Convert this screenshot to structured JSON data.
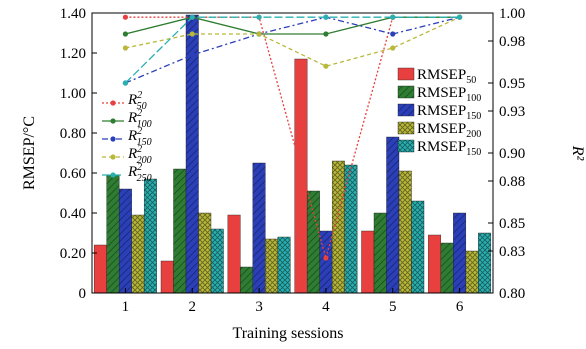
{
  "chart_data": {
    "type": "bar",
    "x_label": "Training sessions",
    "y_label": "RMSEP/°C",
    "y2_label": "R²",
    "categories": [
      "1",
      "2",
      "3",
      "4",
      "5",
      "6"
    ],
    "ylim": [
      0,
      1.4
    ],
    "y_ticks": [
      "0",
      "0.20",
      "0.40",
      "0.60",
      "0.80",
      "1.00",
      "1.20",
      "1.40"
    ],
    "y2lim": [
      0.8,
      1.0
    ],
    "y2_ticks": [
      "0.80",
      "0.83",
      "0.85",
      "0.88",
      "0.90",
      "0.93",
      "0.95",
      "0.98",
      "1.00"
    ],
    "bar_series": [
      {
        "base": "RMSEP",
        "sub": "50",
        "color": "#e8403f",
        "hatch": "none",
        "values": [
          0.24,
          0.16,
          0.39,
          1.17,
          0.31,
          0.29
        ]
      },
      {
        "base": "RMSEP",
        "sub": "100",
        "color": "#2e7d32",
        "hatch": "diagonal",
        "values": [
          0.59,
          0.62,
          0.13,
          0.51,
          0.4,
          0.25
        ]
      },
      {
        "base": "RMSEP",
        "sub": "150",
        "color": "#2b3fb8",
        "hatch": "diagonal",
        "values": [
          0.52,
          1.39,
          0.65,
          0.31,
          0.78,
          0.4
        ]
      },
      {
        "base": "RMSEP",
        "sub": "200",
        "color": "#b8b83a",
        "hatch": "cross",
        "values": [
          0.39,
          0.4,
          0.27,
          0.66,
          0.61,
          0.21
        ]
      },
      {
        "base": "RMSEP",
        "sub": "150",
        "color": "#2ab0b0",
        "hatch": "cross",
        "values": [
          0.57,
          0.32,
          0.28,
          0.64,
          0.46,
          0.3
        ]
      }
    ],
    "line_series": [
      {
        "base": "R",
        "sup": "2",
        "sub": "50",
        "color": "#e8403f",
        "dash": "2,2",
        "values": [
          0.997,
          0.997,
          0.997,
          0.825,
          0.997,
          0.997
        ]
      },
      {
        "base": "R",
        "sup": "2",
        "sub": "100",
        "color": "#2e7d32",
        "dash": "",
        "values": [
          0.985,
          0.997,
          0.985,
          0.985,
          0.997,
          0.997
        ]
      },
      {
        "base": "R",
        "sup": "2",
        "sub": "150",
        "color": "#2b3fb8",
        "dash": "6,3,2,3",
        "values": [
          0.95,
          0.97,
          0.985,
          0.997,
          0.985,
          0.997
        ]
      },
      {
        "base": "R",
        "sup": "2",
        "sub": "200",
        "color": "#b8b83a",
        "dash": "4,3",
        "values": [
          0.975,
          0.985,
          0.985,
          0.962,
          0.975,
          0.997
        ]
      },
      {
        "base": "R",
        "sup": "2",
        "sub": "250",
        "color": "#2ab0b0",
        "dash": "8,3",
        "values": [
          0.95,
          0.997,
          0.997,
          0.997,
          0.997,
          0.997
        ]
      }
    ]
  }
}
